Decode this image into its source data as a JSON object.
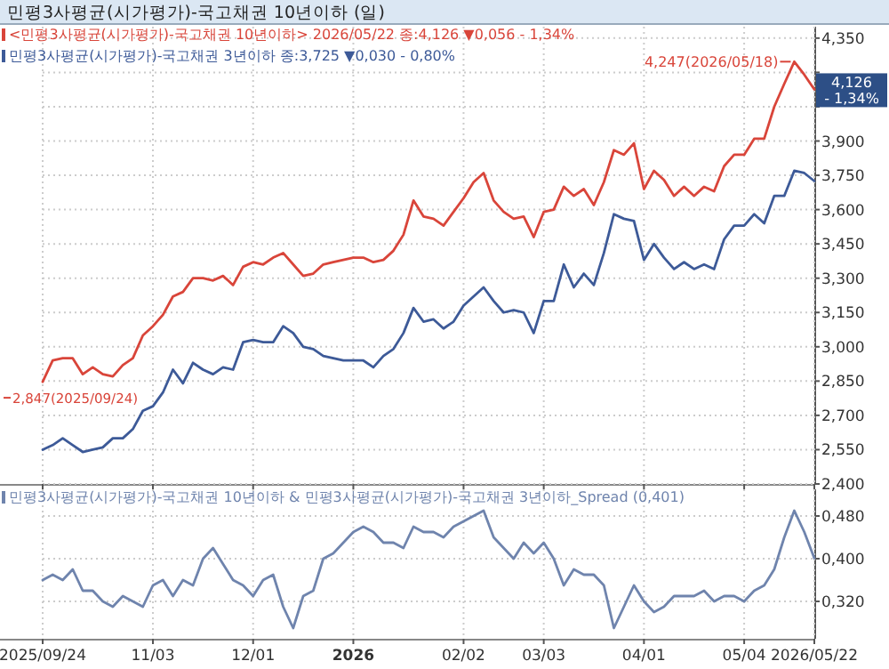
{
  "chart_data": [
    {
      "type": "line",
      "title": "민평3사평균(시가평가)-국고채권 10년이하 (일)",
      "categories": [
        null,
        null,
        null,
        null,
        null,
        null,
        null,
        null,
        null,
        null,
        null,
        null,
        null,
        null,
        null,
        null,
        null,
        null,
        null,
        null,
        null,
        null,
        null,
        null,
        null,
        null,
        null,
        null,
        null,
        null,
        null,
        null,
        null,
        null,
        null,
        null,
        null,
        null,
        null,
        null,
        null,
        null,
        null,
        null,
        null,
        null,
        null,
        null,
        null,
        null,
        null,
        null,
        null,
        null,
        null,
        null,
        null,
        null,
        null,
        null,
        null,
        null,
        null,
        null,
        null,
        null,
        null,
        null,
        null,
        null,
        null,
        null,
        null,
        null,
        null,
        null,
        null,
        null
      ],
      "series": [
        {
          "name": "<민평3사평균(시가평가)-국고채권 10년이하> 2026/05/22 종:4,126 ▼0,056 - 1,34%",
          "color": "#d9453a",
          "values": [
            2.847,
            2.94,
            2.95,
            2.95,
            2.88,
            2.91,
            2.88,
            2.87,
            2.92,
            2.95,
            3.05,
            3.09,
            3.14,
            3.22,
            3.24,
            3.3,
            3.3,
            3.29,
            3.31,
            3.27,
            3.35,
            3.37,
            3.36,
            3.39,
            3.41,
            3.36,
            3.31,
            3.32,
            3.36,
            3.37,
            3.38,
            3.39,
            3.39,
            3.37,
            3.38,
            3.42,
            3.49,
            3.64,
            3.57,
            3.56,
            3.53,
            3.59,
            3.65,
            3.72,
            3.76,
            3.64,
            3.59,
            3.56,
            3.57,
            3.48,
            3.59,
            3.6,
            3.7,
            3.66,
            3.69,
            3.62,
            3.72,
            3.86,
            3.84,
            3.89,
            3.69,
            3.77,
            3.73,
            3.66,
            3.7,
            3.66,
            3.7,
            3.68,
            3.79,
            3.84,
            3.84,
            3.91,
            3.91,
            4.05,
            4.15,
            4.247,
            4.19,
            4.126
          ],
          "value_labels": [
            "2,847(2025/09/24)",
            null,
            null,
            null,
            null,
            null,
            null,
            null,
            null,
            null,
            null,
            null,
            null,
            null,
            null,
            null,
            null,
            null,
            null,
            null,
            null,
            null,
            null,
            null,
            null,
            null,
            null,
            null,
            null,
            null,
            null,
            null,
            null,
            null,
            null,
            null,
            null,
            null,
            null,
            null,
            null,
            null,
            null,
            null,
            null,
            null,
            null,
            null,
            null,
            null,
            null,
            null,
            null,
            null,
            null,
            null,
            null,
            null,
            null,
            null,
            null,
            null,
            null,
            null,
            null,
            null,
            null,
            null,
            null,
            null,
            null,
            null,
            null,
            null,
            null,
            "4,247(2026/05/18)",
            null,
            "4,126 - 1,34%"
          ]
        },
        {
          "name": "민평3사평균(시가평가)-국고채권 3년이하 종:3,725 ▼0,030 - 0,80%",
          "color": "#3d5a98",
          "values": [
            2.55,
            2.57,
            2.6,
            2.57,
            2.54,
            2.55,
            2.56,
            2.6,
            2.6,
            2.64,
            2.72,
            2.74,
            2.8,
            2.9,
            2.84,
            2.93,
            2.9,
            2.88,
            2.91,
            2.9,
            3.02,
            3.03,
            3.02,
            3.02,
            3.09,
            3.06,
            3.0,
            2.99,
            2.96,
            2.95,
            2.94,
            2.94,
            2.94,
            2.91,
            2.96,
            2.99,
            3.06,
            3.17,
            3.11,
            3.12,
            3.08,
            3.11,
            3.18,
            3.22,
            3.26,
            3.2,
            3.15,
            3.16,
            3.15,
            3.06,
            3.2,
            3.2,
            3.36,
            3.26,
            3.32,
            3.27,
            3.41,
            3.58,
            3.56,
            3.55,
            3.38,
            3.45,
            3.39,
            3.34,
            3.37,
            3.34,
            3.36,
            3.34,
            3.47,
            3.53,
            3.53,
            3.58,
            3.54,
            3.66,
            3.66,
            3.77,
            3.76,
            3.725
          ]
        }
      ],
      "ylim": [
        2.4,
        4.4
      ],
      "yticks": [
        {
          "value": 2.4,
          "label": "2,400"
        },
        {
          "value": 2.55,
          "label": "2,550"
        },
        {
          "value": 2.7,
          "label": "2,700"
        },
        {
          "value": 2.85,
          "label": "2,850"
        },
        {
          "value": 3.0,
          "label": "3,000"
        },
        {
          "value": 3.15,
          "label": "3,150"
        },
        {
          "value": 3.3,
          "label": "3,300"
        },
        {
          "value": 3.45,
          "label": "3,450"
        },
        {
          "value": 3.6,
          "label": "3,600"
        },
        {
          "value": 3.75,
          "label": "3,750"
        },
        {
          "value": 3.9,
          "label": "3,900"
        },
        {
          "value": 4.05,
          "label": null
        },
        {
          "value": 4.2,
          "label": null
        },
        {
          "value": 4.35,
          "label": "4,350"
        }
      ],
      "grid": true,
      "tick_labels": "y",
      "legend": "top left"
    },
    {
      "type": "line",
      "categories": [
        "2025/09/24",
        null,
        null,
        null,
        null,
        null,
        null,
        null,
        null,
        null,
        null,
        "11/03",
        null,
        null,
        null,
        null,
        null,
        null,
        null,
        null,
        null,
        "12/01",
        null,
        null,
        null,
        null,
        null,
        null,
        null,
        null,
        null,
        "2026",
        null,
        null,
        null,
        null,
        null,
        null,
        null,
        null,
        null,
        null,
        "02/02",
        null,
        null,
        null,
        null,
        null,
        null,
        null,
        "03/03",
        null,
        null,
        null,
        null,
        null,
        null,
        null,
        null,
        null,
        "04/01",
        null,
        null,
        null,
        null,
        null,
        null,
        null,
        null,
        null,
        "05/04",
        null,
        null,
        null,
        null,
        null,
        null,
        "2026/05/22"
      ],
      "series": [
        {
          "name": "민평3사평균(시가평가)-국고채권 10년이하 & 민평3사평균(시가평가)-국고채권 3년이하_Spread (0,401)",
          "color": "#6f84ad",
          "values": [
            0.36,
            0.37,
            0.36,
            0.38,
            0.34,
            0.34,
            0.32,
            0.31,
            0.33,
            0.32,
            0.31,
            0.35,
            0.36,
            0.33,
            0.36,
            0.35,
            0.4,
            0.42,
            0.39,
            0.36,
            0.35,
            0.33,
            0.36,
            0.37,
            0.31,
            0.27,
            0.33,
            0.34,
            0.4,
            0.41,
            0.43,
            0.45,
            0.46,
            0.45,
            0.43,
            0.43,
            0.42,
            0.46,
            0.45,
            0.45,
            0.44,
            0.46,
            0.47,
            0.48,
            0.49,
            0.44,
            0.42,
            0.4,
            0.43,
            0.41,
            0.43,
            0.4,
            0.35,
            0.38,
            0.37,
            0.37,
            0.35,
            0.27,
            0.31,
            0.35,
            0.32,
            0.3,
            0.31,
            0.33,
            0.33,
            0.33,
            0.34,
            0.32,
            0.33,
            0.33,
            0.32,
            0.34,
            0.35,
            0.38,
            0.44,
            0.49,
            0.45,
            0.401
          ]
        }
      ],
      "ylim": [
        0.25,
        0.53
      ],
      "yticks": [
        {
          "value": 0.32,
          "label": "0,320"
        },
        {
          "value": 0.4,
          "label": "0,400"
        },
        {
          "value": 0.48,
          "label": "0,480"
        }
      ],
      "grid": true,
      "legend": "top left"
    }
  ]
}
